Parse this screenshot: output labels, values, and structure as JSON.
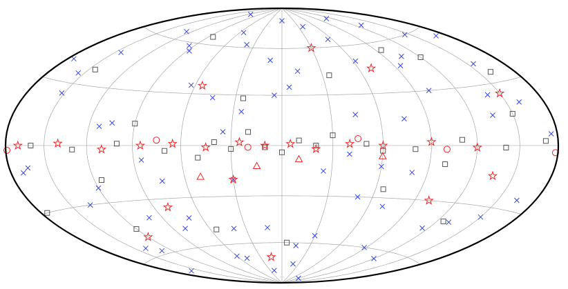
{
  "chart_data": {
    "type": "aitoff",
    "xlim": [
      -180,
      180
    ],
    "ylim": [
      -90,
      90
    ],
    "xticks": [
      -150,
      -120,
      -90,
      -60,
      -30,
      0,
      30,
      60,
      90,
      120,
      150
    ],
    "yticks": [
      -60,
      -30,
      0,
      30,
      60
    ],
    "grid": true,
    "series": [
      {
        "color": "#3344dd",
        "marker": "x",
        "x": [
          -170,
          -155,
          -140,
          -128,
          -115,
          -100,
          -88,
          -75,
          -62,
          -50,
          -38,
          -25,
          -12,
          0,
          12,
          25,
          38,
          50,
          63,
          75,
          88,
          100,
          113,
          126,
          140,
          152,
          165,
          175,
          -165,
          -145,
          -120,
          -95,
          -70,
          -45,
          -20,
          5,
          30,
          55,
          80,
          105,
          130,
          155,
          -160,
          -130,
          -105,
          -80,
          -55,
          -30,
          -5,
          20,
          45,
          70,
          95,
          120,
          145,
          170,
          -150,
          -110,
          -60,
          -15,
          35,
          85,
          135,
          -175,
          -90,
          10,
          60,
          115,
          -135,
          -40,
          40,
          160
        ],
        "values": [
          55,
          40,
          25,
          70,
          -45,
          30,
          -60,
          15,
          50,
          -30,
          75,
          -15,
          45,
          80,
          -50,
          20,
          62,
          -70,
          35,
          -20,
          55,
          -40,
          10,
          65,
          -55,
          25,
          -10,
          40,
          -25,
          60,
          -65,
          45,
          -35,
          18,
          -75,
          30,
          -20,
          70,
          -48,
          12,
          -58,
          35,
          20,
          -40,
          50,
          -15,
          65,
          -55,
          35,
          -80,
          28,
          -42,
          58,
          -22,
          48,
          -12,
          -35,
          78,
          -12,
          -62,
          8,
          -8,
          -30,
          5,
          -85,
          52,
          -68,
          82,
          15,
          -5,
          -50,
          -70
        ]
      },
      {
        "color": "#555555",
        "marker": "square",
        "x": [
          -170,
          -140,
          -110,
          -80,
          -50,
          -20,
          10,
          40,
          70,
          100,
          130,
          160,
          -160,
          -125,
          -95,
          -65,
          -35,
          -5,
          25,
          55,
          85,
          115,
          145,
          175,
          -150,
          -100,
          -30,
          0,
          20,
          50,
          90,
          -60,
          -10,
          30,
          120,
          -120
        ],
        "values": [
          2,
          -1,
          3,
          -2,
          1,
          0,
          -1,
          2,
          -3,
          1,
          -2,
          0,
          35,
          -40,
          55,
          -25,
          42,
          -60,
          28,
          -50,
          65,
          -18,
          38,
          -30,
          15,
          -10,
          6,
          -4,
          8,
          -7,
          12,
          -3,
          3,
          -2,
          -45,
          48
        ]
      },
      {
        "color": "#ee2222",
        "marker": "star",
        "x": [
          -120,
          -90,
          -60,
          -40,
          -20,
          -5,
          10,
          25,
          45,
          65,
          85,
          110,
          140,
          170,
          -150,
          -100,
          -70,
          30,
          80,
          -30,
          55,
          120,
          -135,
          15
        ],
        "values": [
          -1,
          2,
          0,
          1,
          -2,
          1,
          0,
          2,
          -1,
          1,
          0,
          -2,
          1,
          0,
          25,
          -30,
          45,
          -20,
          -35,
          60,
          35,
          -50,
          -15,
          -70
        ]
      },
      {
        "color": "#ee2222",
        "marker": "circle",
        "x": [
          -178,
          -100,
          -45,
          20,
          75,
          179
        ],
        "values": [
          -3,
          -2,
          4,
          -1,
          3,
          -2
        ]
      },
      {
        "color": "#ee2222",
        "marker": "triangle",
        "x": [
          -10,
          15,
          50,
          -60
        ],
        "values": [
          -8,
          -12,
          -18,
          -6
        ]
      }
    ]
  }
}
